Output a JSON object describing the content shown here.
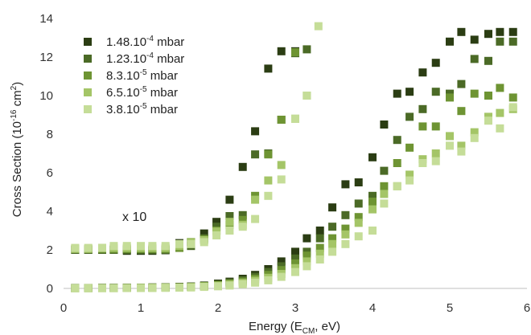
{
  "chart_data": {
    "type": "scatter",
    "xlabel": "Energy (E",
    "xlabel_sub": "CM",
    "xlabel_tail": ", eV)",
    "ylabel": "Cross Section (10",
    "ylabel_sup": "-16",
    "ylabel_mid": " cm",
    "ylabel_sup2": "2",
    "ylabel_tail": ")",
    "xlim": [
      0,
      6
    ],
    "ylim": [
      0,
      14
    ],
    "xticks": [
      "0",
      "1",
      "2",
      "3",
      "4",
      "5",
      "6"
    ],
    "yticks": [
      "0",
      "2",
      "4",
      "6",
      "8",
      "10",
      "12",
      "14"
    ],
    "grid": false,
    "legend_placement": "top-left",
    "annotation": "x 10",
    "series": [
      {
        "name_base": "1.48.10",
        "name_exp": "-4",
        "name_unit": " mbar",
        "color": "#2b3d13",
        "x": [
          0.15,
          0.32,
          0.5,
          0.65,
          0.82,
          1.0,
          1.15,
          1.32,
          1.5,
          1.65,
          1.82,
          2.0,
          2.15,
          2.32,
          2.48,
          2.65,
          2.82,
          3.0,
          3.15,
          3.32,
          3.48,
          3.65,
          3.82,
          4.0,
          4.15,
          4.32,
          4.48,
          4.65,
          4.82,
          5.0,
          5.15,
          5.32,
          5.5,
          5.65,
          5.82
        ],
        "y": [
          0.02,
          0.02,
          0.03,
          0.03,
          0.04,
          0.04,
          0.05,
          0.06,
          0.08,
          0.1,
          0.15,
          0.25,
          0.35,
          0.5,
          0.7,
          1.0,
          1.4,
          1.9,
          2.6,
          3.0,
          4.2,
          5.4,
          5.5,
          6.8,
          8.5,
          10.1,
          10.2,
          11.2,
          11.7,
          12.8,
          13.3,
          12.9,
          13.2,
          13.3,
          13.3
        ],
        "x10_x": [
          0.15,
          0.32,
          0.5,
          0.65,
          0.82,
          1.0,
          1.15,
          1.32,
          1.5,
          1.65,
          1.82,
          1.98,
          2.15,
          2.32,
          2.48,
          2.65,
          2.82,
          3.0
        ],
        "x10_y": [
          2.0,
          2.0,
          2.0,
          2.0,
          1.95,
          1.95,
          1.95,
          1.98,
          2.35,
          2.4,
          2.85,
          3.45,
          4.6,
          6.3,
          8.15,
          11.4,
          12.3,
          12.3
        ]
      },
      {
        "name_base": "1.23.10",
        "name_exp": "-4",
        "name_unit": " mbar",
        "color": "#4b6a26",
        "x": [
          0.15,
          0.32,
          0.5,
          0.65,
          0.82,
          1.0,
          1.15,
          1.32,
          1.5,
          1.65,
          1.82,
          2.0,
          2.15,
          2.32,
          2.48,
          2.65,
          2.82,
          3.0,
          3.15,
          3.32,
          3.48,
          3.65,
          3.82,
          4.0,
          4.15,
          4.32,
          4.48,
          4.65,
          4.82,
          5.0,
          5.15,
          5.32,
          5.5,
          5.65,
          5.82
        ],
        "y": [
          0.02,
          0.02,
          0.03,
          0.03,
          0.04,
          0.04,
          0.05,
          0.06,
          0.07,
          0.09,
          0.13,
          0.2,
          0.3,
          0.42,
          0.6,
          0.85,
          1.15,
          1.55,
          1.9,
          2.6,
          3.2,
          3.8,
          4.4,
          4.8,
          6.1,
          7.7,
          8.9,
          9.3,
          10.2,
          10.1,
          10.6,
          11.9,
          11.8,
          12.8,
          12.8
        ],
        "x10_x": [
          0.15,
          0.32,
          0.5,
          0.65,
          0.82,
          1.0,
          1.15,
          1.32,
          1.5,
          1.65,
          1.82,
          1.98,
          2.15,
          2.32,
          2.48,
          2.65,
          2.82,
          3.0,
          3.15
        ],
        "x10_y": [
          2.0,
          2.0,
          2.0,
          2.0,
          2.0,
          2.0,
          2.0,
          2.0,
          2.2,
          2.2,
          2.6,
          3.2,
          3.75,
          3.8,
          6.95,
          7.0,
          8.75,
          12.2,
          12.4
        ]
      },
      {
        "name_base": "8.3.10",
        "name_exp": "-5",
        "name_unit": " mbar",
        "color": "#6e9433",
        "x": [
          0.15,
          0.32,
          0.5,
          0.65,
          0.82,
          1.0,
          1.15,
          1.32,
          1.5,
          1.65,
          1.82,
          2.0,
          2.15,
          2.32,
          2.48,
          2.65,
          2.82,
          3.0,
          3.15,
          3.32,
          3.48,
          3.65,
          3.82,
          4.0,
          4.15,
          4.32,
          4.48,
          4.65,
          4.82,
          5.0,
          5.15,
          5.32,
          5.5,
          5.65,
          5.82
        ],
        "y": [
          0.01,
          0.02,
          0.02,
          0.02,
          0.03,
          0.03,
          0.04,
          0.05,
          0.06,
          0.08,
          0.12,
          0.17,
          0.25,
          0.35,
          0.5,
          0.7,
          0.95,
          1.3,
          1.7,
          2.1,
          2.6,
          3.1,
          3.7,
          4.5,
          5.3,
          6.5,
          7.3,
          8.4,
          8.4,
          9.9,
          9.2,
          10.1,
          10.0,
          10.4,
          9.9
        ],
        "x10_x": [
          0.15,
          0.32,
          0.5,
          0.65,
          0.82,
          1.0,
          1.15,
          1.32,
          1.5,
          1.65,
          1.82,
          1.98,
          2.15,
          2.32,
          2.48,
          2.65,
          2.82,
          3.0
        ],
        "x10_y": [
          2.05,
          2.05,
          2.05,
          2.05,
          2.05,
          2.05,
          2.05,
          2.05,
          2.1,
          2.4,
          2.55,
          3.0,
          3.3,
          3.55,
          4.8,
          6.95,
          8.75,
          12.25
        ]
      },
      {
        "name_base": "6.5.10",
        "name_exp": "-5",
        "name_unit": " mbar",
        "color": "#a4c567",
        "x": [
          0.15,
          0.32,
          0.5,
          0.65,
          0.82,
          1.0,
          1.15,
          1.32,
          1.5,
          1.65,
          1.82,
          2.0,
          2.15,
          2.32,
          2.48,
          2.65,
          2.82,
          3.0,
          3.15,
          3.32,
          3.48,
          3.65,
          3.82,
          4.0,
          4.15,
          4.32,
          4.48,
          4.65,
          4.82,
          5.0,
          5.15,
          5.32,
          5.5,
          5.65,
          5.82
        ],
        "y": [
          0.01,
          0.01,
          0.02,
          0.02,
          0.02,
          0.03,
          0.03,
          0.04,
          0.05,
          0.07,
          0.1,
          0.14,
          0.2,
          0.28,
          0.4,
          0.55,
          0.75,
          1.05,
          1.4,
          1.8,
          2.3,
          2.8,
          3.4,
          4.1,
          4.9,
          5.3,
          5.9,
          6.7,
          7.0,
          7.9,
          7.4,
          8.1,
          8.9,
          9.1,
          9.3
        ],
        "x10_x": [
          0.15,
          0.32,
          0.5,
          0.65,
          0.82,
          1.0,
          1.15,
          1.32,
          1.5,
          1.65,
          1.82,
          1.98,
          2.15,
          2.32,
          2.48,
          2.65,
          2.82,
          3.0,
          3.15
        ],
        "x10_y": [
          2.05,
          2.05,
          2.1,
          2.1,
          2.1,
          2.1,
          2.1,
          2.1,
          2.2,
          2.4,
          2.5,
          2.95,
          3.45,
          3.3,
          4.6,
          5.6,
          6.4,
          8.8,
          10.0
        ]
      },
      {
        "name_base": "3.8.10",
        "name_exp": "-5",
        "name_unit": " mbar",
        "color": "#c5dd98",
        "x": [
          0.15,
          0.32,
          0.5,
          0.65,
          0.82,
          1.0,
          1.15,
          1.32,
          1.5,
          1.65,
          1.82,
          2.0,
          2.15,
          2.32,
          2.48,
          2.65,
          2.82,
          3.0,
          3.15,
          3.32,
          3.48,
          3.65,
          3.82,
          4.0,
          4.15,
          4.32,
          4.48,
          4.65,
          4.82,
          5.0,
          5.15,
          5.32,
          5.5,
          5.65,
          5.82
        ],
        "y": [
          0.0,
          0.01,
          0.01,
          0.01,
          0.02,
          0.02,
          0.02,
          0.03,
          0.04,
          0.05,
          0.08,
          0.11,
          0.15,
          0.22,
          0.3,
          0.42,
          0.6,
          0.85,
          1.15,
          1.5,
          1.9,
          2.3,
          2.7,
          3.0,
          4.4,
          5.3,
          5.6,
          6.5,
          6.6,
          7.4,
          7.1,
          7.8,
          8.7,
          8.3,
          9.4
        ],
        "x10_x": [
          0.15,
          0.32,
          0.5,
          0.65,
          0.82,
          1.0,
          1.15,
          1.32,
          1.5,
          1.65,
          1.82,
          1.98,
          2.15,
          2.32,
          2.48,
          2.65,
          2.82,
          3.0,
          3.15,
          3.3
        ],
        "x10_y": [
          2.1,
          2.1,
          2.1,
          2.2,
          2.2,
          2.2,
          2.2,
          2.2,
          2.3,
          2.3,
          2.4,
          2.75,
          3.0,
          3.2,
          3.6,
          4.8,
          5.65,
          8.8,
          10.0,
          13.6
        ]
      }
    ]
  }
}
